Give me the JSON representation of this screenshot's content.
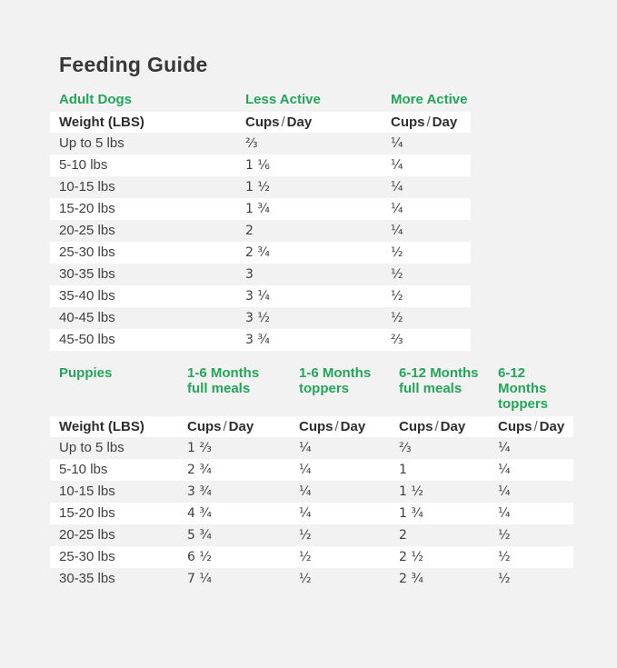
{
  "page": {
    "title": "Feeding Guide",
    "accent_green": "#23a55a",
    "background": "#f2f2f2",
    "band_white": "#ffffff"
  },
  "adult": {
    "section_label": "Adult Dogs",
    "less_active_label": "Less Active",
    "more_active_label": "More Active",
    "weight_header": "Weight (LBS)",
    "cups": "Cups",
    "sep": "/",
    "day": "Day",
    "rows": [
      {
        "weight": "Up to 5 lbs",
        "less": "⅔",
        "more": "¼"
      },
      {
        "weight": "5-10 lbs",
        "less": "1 ⅙",
        "more": "¼"
      },
      {
        "weight": "10-15 lbs",
        "less": "1 ½",
        "more": "¼"
      },
      {
        "weight": "15-20 lbs",
        "less": "1 ¾",
        "more": "¼"
      },
      {
        "weight": "20-25 lbs",
        "less": "2",
        "more": "¼"
      },
      {
        "weight": "25-30 lbs",
        "less": "2 ¾",
        "more": "½"
      },
      {
        "weight": "30-35 lbs",
        "less": "3",
        "more": "½"
      },
      {
        "weight": "35-40 lbs",
        "less": "3 ¼",
        "more": "½"
      },
      {
        "weight": "40-45 lbs",
        "less": "3 ½",
        "more": "½"
      },
      {
        "weight": "45-50 lbs",
        "less": "3 ¾",
        "more": "⅔"
      }
    ]
  },
  "puppies": {
    "section_label": "Puppies",
    "columns": [
      {
        "line1": "1-6 Months",
        "line2": "full meals"
      },
      {
        "line1": "1-6 Months",
        "line2": "toppers"
      },
      {
        "line1": "6-12 Months",
        "line2": "full meals"
      },
      {
        "line1": "6-12 Months",
        "line2": "toppers"
      }
    ],
    "weight_header": "Weight (LBS)",
    "cups": "Cups",
    "sep": "/",
    "day": "Day",
    "rows": [
      {
        "weight": "Up to 5 lbs",
        "c1": "1 ⅔",
        "c2": "¼",
        "c3": "⅔",
        "c4": "¼"
      },
      {
        "weight": "5-10 lbs",
        "c1": "2 ¾",
        "c2": "¼",
        "c3": "1",
        "c4": "¼"
      },
      {
        "weight": "10-15 lbs",
        "c1": "3 ¾",
        "c2": "¼",
        "c3": "1 ½",
        "c4": "¼"
      },
      {
        "weight": "15-20 lbs",
        "c1": "4 ¾",
        "c2": "¼",
        "c3": "1 ¾",
        "c4": "¼"
      },
      {
        "weight": "20-25 lbs",
        "c1": "5 ¾",
        "c2": "½",
        "c3": "2",
        "c4": "½"
      },
      {
        "weight": "25-30 lbs",
        "c1": "6 ½",
        "c2": "½",
        "c3": "2 ½",
        "c4": "½"
      },
      {
        "weight": "30-35 lbs",
        "c1": "7 ¼",
        "c2": "½",
        "c3": "2 ¾",
        "c4": "½"
      }
    ]
  }
}
